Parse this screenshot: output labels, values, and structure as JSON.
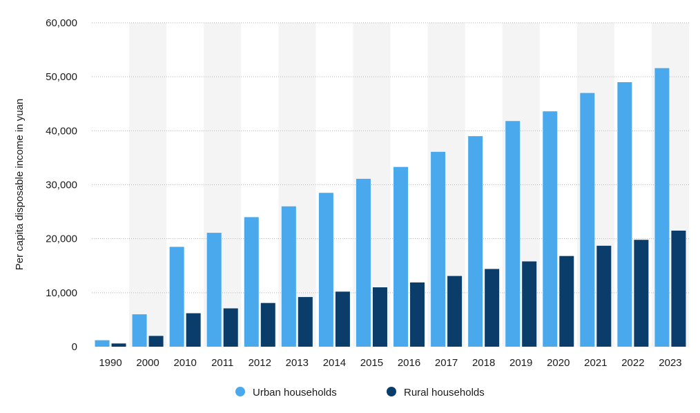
{
  "chart_data": {
    "type": "bar",
    "title": "",
    "xlabel": "",
    "ylabel": "Per capita disposable income in yuan",
    "ylim": [
      0,
      60000
    ],
    "yticks": [
      0,
      10000,
      20000,
      30000,
      40000,
      50000,
      60000
    ],
    "ytick_labels": [
      "0",
      "10,000",
      "20,000",
      "30,000",
      "40,000",
      "50,000",
      "60,000"
    ],
    "grid": "horizontal dotted",
    "legend_position": "bottom",
    "categories": [
      "1990",
      "2000",
      "2010",
      "2011",
      "2012",
      "2013",
      "2014",
      "2015",
      "2016",
      "2017",
      "2018",
      "2019",
      "2020",
      "2021",
      "2022",
      "2023"
    ],
    "series": [
      {
        "name": "Urban households",
        "color": "#4aa9ec",
        "values": [
          1200,
          6000,
          18500,
          21100,
          24000,
          26000,
          28500,
          31100,
          33300,
          36100,
          39000,
          41800,
          43600,
          47000,
          49000,
          51600
        ]
      },
      {
        "name": "Rural households",
        "color": "#0b3d6b",
        "values": [
          600,
          2000,
          6200,
          7100,
          8100,
          9200,
          10200,
          11000,
          11900,
          13100,
          14400,
          15800,
          16800,
          18700,
          19800,
          21500
        ]
      }
    ]
  }
}
